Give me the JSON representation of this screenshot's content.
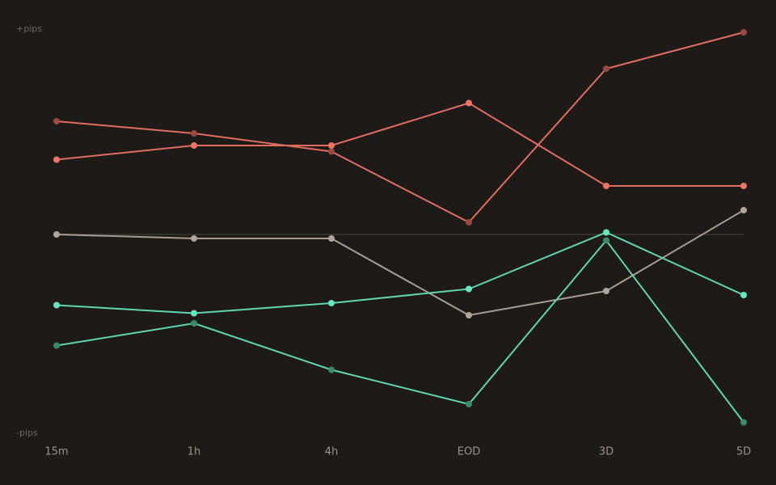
{
  "chart_data": {
    "type": "line",
    "categories": [
      "15m",
      "1h",
      "4h",
      "EOD",
      "3D",
      "5D"
    ],
    "series": [
      {
        "color": "#e06d5f",
        "marker_color": "#9c4a40",
        "values": [
          56,
          50,
          41,
          6,
          82,
          100
        ]
      },
      {
        "color": "#e06d5f",
        "marker_color": "#ec7565",
        "values": [
          37,
          44,
          44,
          65,
          24,
          24
        ]
      },
      {
        "color": "#a89d93",
        "marker_color": "#b0a59b",
        "values": [
          0,
          -2,
          -2,
          -40,
          -28,
          12
        ]
      },
      {
        "color": "#5fd6ae",
        "marker_color": "#66e6ba",
        "values": [
          -35,
          -39,
          -34,
          -27,
          1,
          -30
        ]
      },
      {
        "color": "#5fd6ae",
        "marker_color": "#3c8a6c",
        "values": [
          -55,
          -44,
          -67,
          -84,
          -3,
          -93
        ]
      }
    ],
    "ylim": [
      -100,
      100
    ],
    "yticks": [
      {
        "value": 100,
        "label": "+pips"
      },
      {
        "value": -100,
        "label": "-pips"
      }
    ],
    "zero_line": true,
    "grid": false
  }
}
